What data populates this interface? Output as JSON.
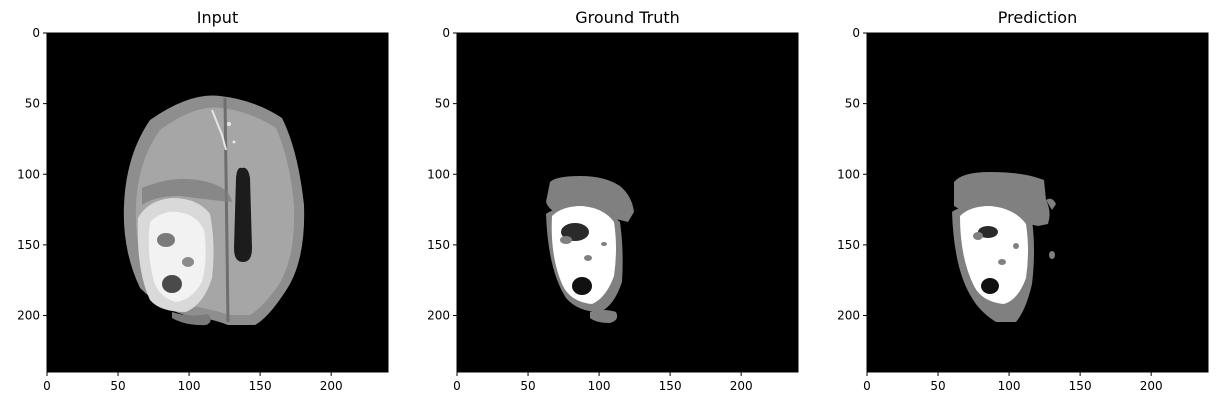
{
  "panels": [
    {
      "id": "input",
      "title": "Input",
      "content": "mri-brain-slice"
    },
    {
      "id": "ground-truth",
      "title": "Ground Truth",
      "content": "segmentation-mask"
    },
    {
      "id": "prediction",
      "title": "Prediction",
      "content": "segmentation-mask"
    }
  ],
  "axes": {
    "x_ticks": [
      "0",
      "50",
      "100",
      "150",
      "200"
    ],
    "y_ticks": [
      "0",
      "50",
      "100",
      "150",
      "200"
    ],
    "x_values": [
      0,
      50,
      100,
      150,
      200
    ],
    "y_values": [
      0,
      50,
      100,
      150,
      200
    ],
    "xlim": [
      0,
      240
    ],
    "ylim": [
      0,
      240
    ]
  },
  "colors": {
    "background": "#000000",
    "mask_edema": "#808080",
    "mask_core": "#ffffff",
    "mask_necrotic": "#1a1a1a",
    "brain_tissue": "#9a9a9a"
  }
}
